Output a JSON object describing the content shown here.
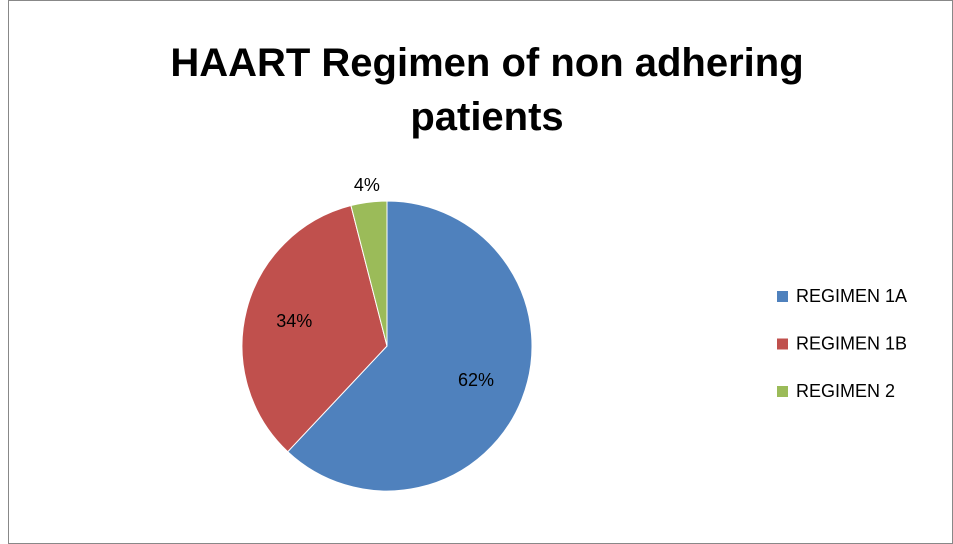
{
  "chart_data": {
    "type": "pie",
    "title": "HAART Regimen of non adhering patients",
    "categories": [
      "REGIMEN 1A",
      "REGIMEN 1B",
      "REGIMEN 2"
    ],
    "values": [
      62,
      34,
      4
    ],
    "value_labels": [
      "62%",
      "34%",
      "4%"
    ],
    "colors": [
      "#4f81bd",
      "#c0504d",
      "#9bbb59"
    ],
    "legend": "right"
  }
}
